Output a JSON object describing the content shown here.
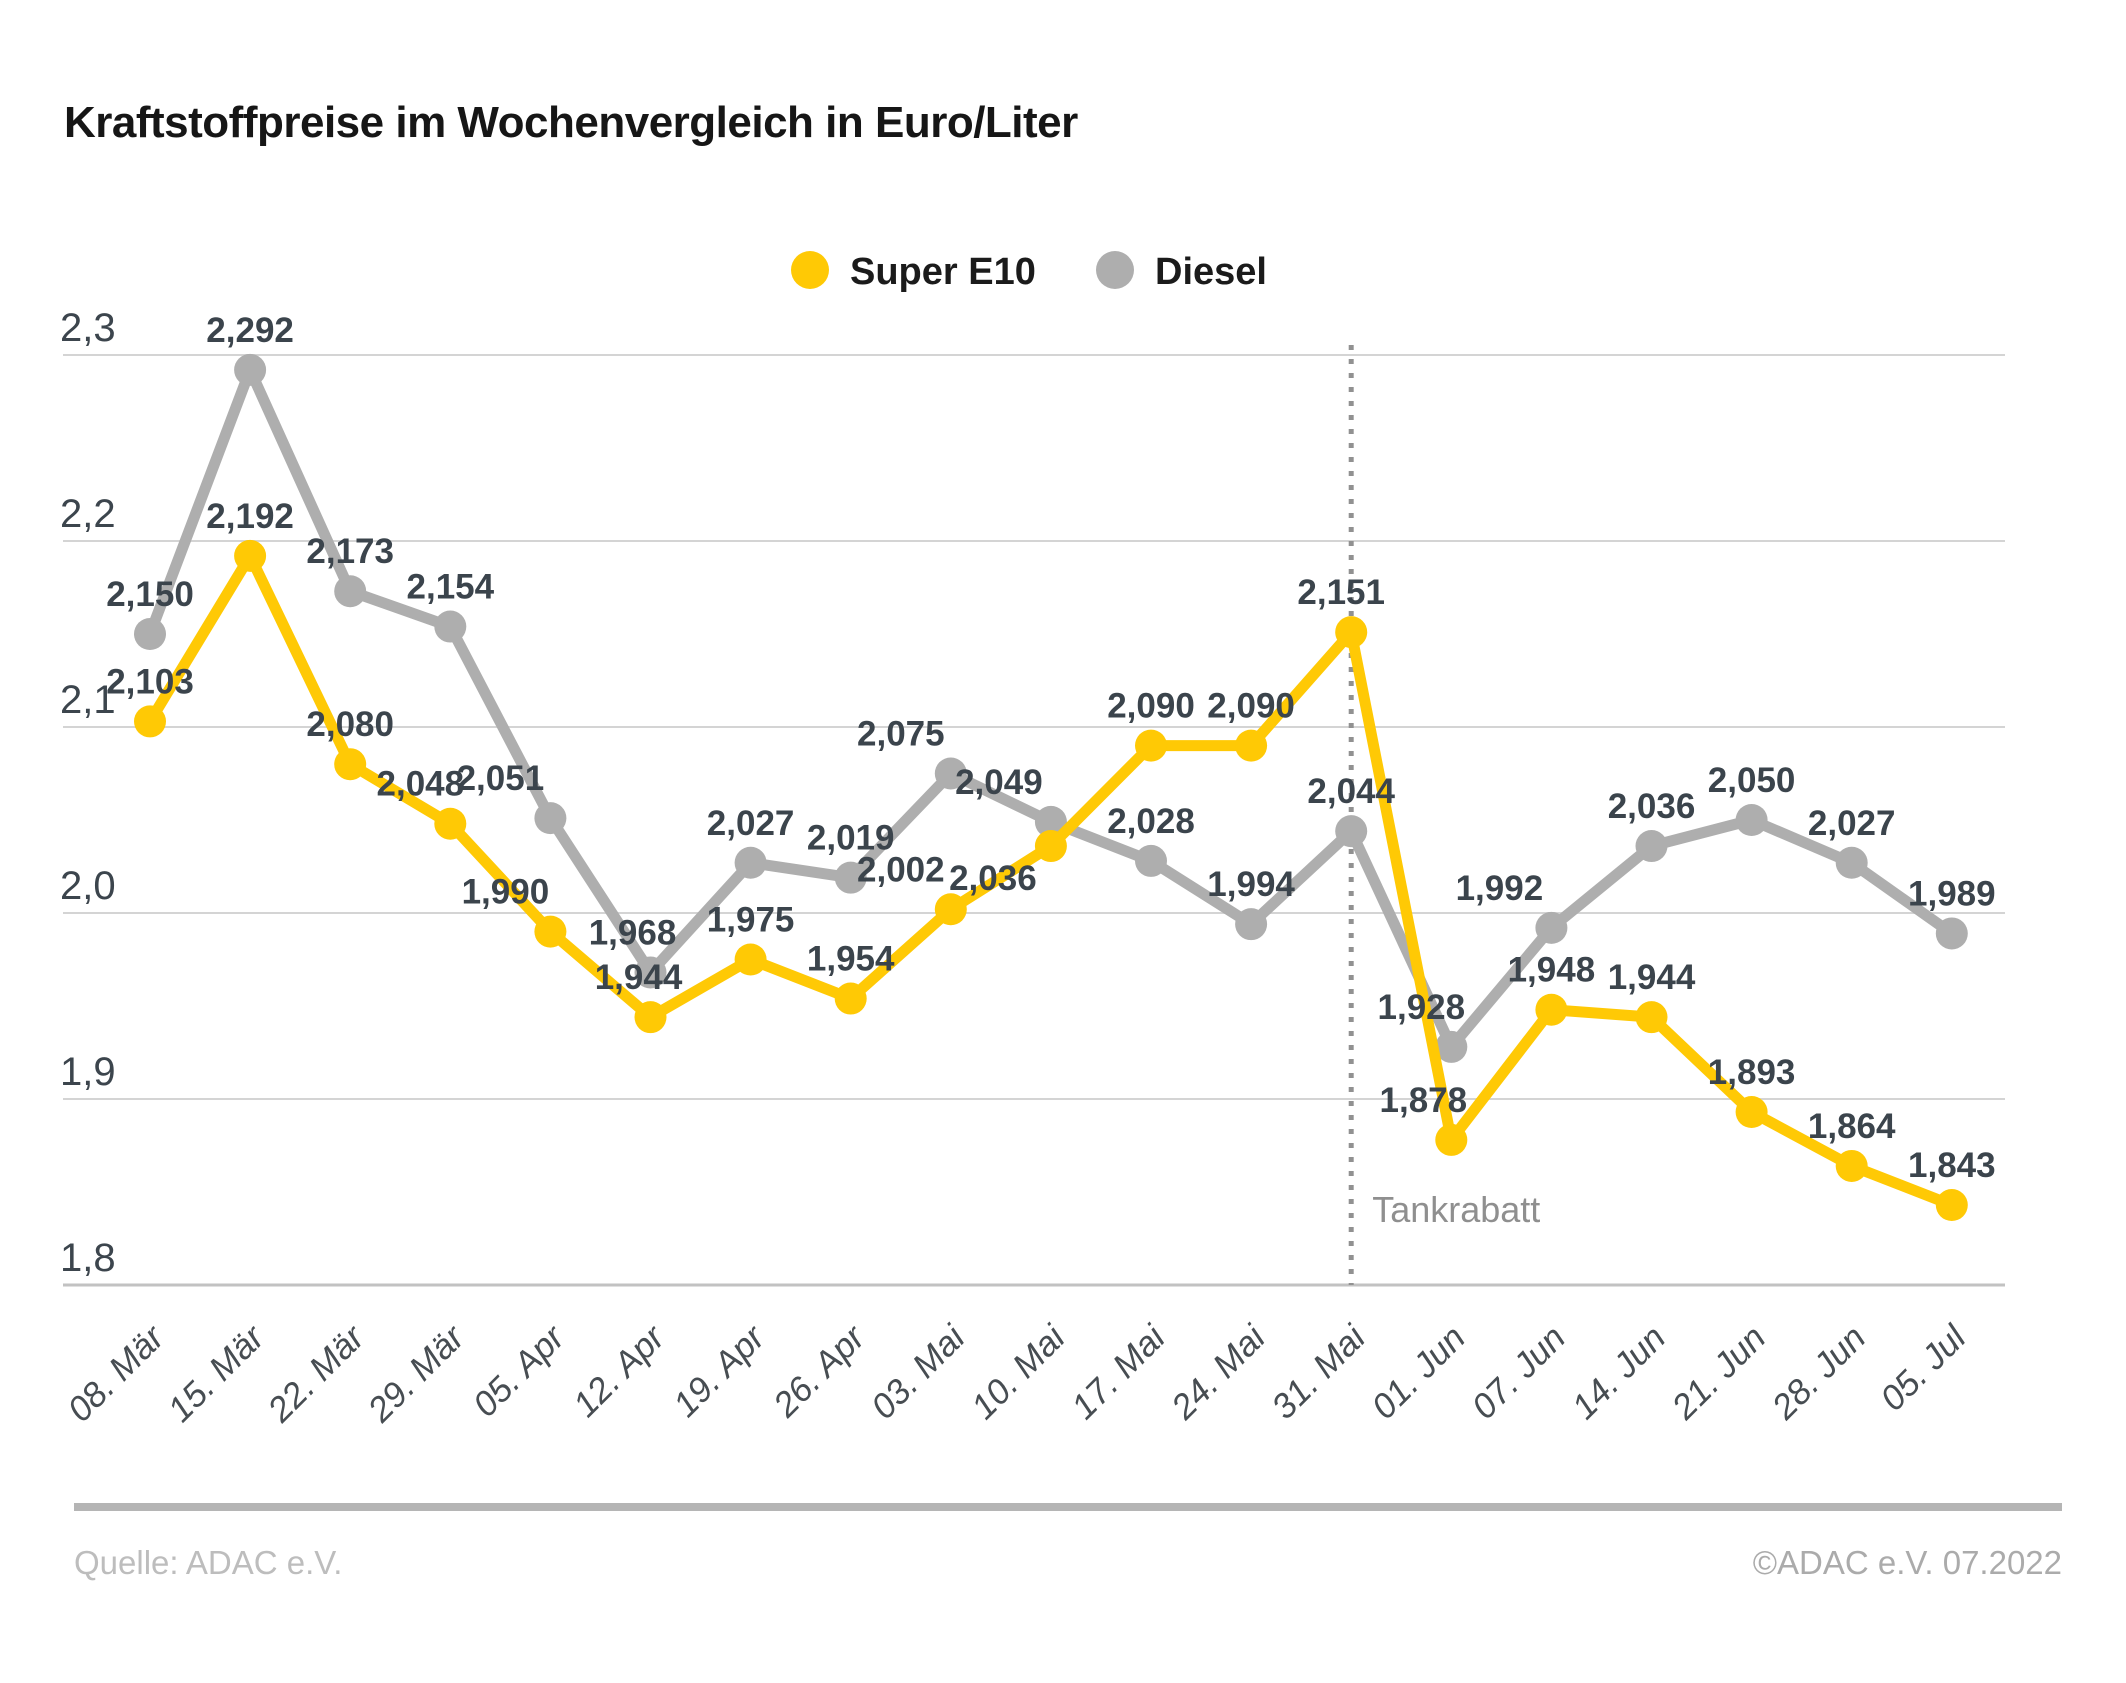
{
  "title": "Kraftstoffpreise im Wochenvergleich in Euro/Liter",
  "legend": [
    {
      "label": "Super E10",
      "color": "#FFC905"
    },
    {
      "label": "Diesel",
      "color": "#AEAEAE"
    }
  ],
  "footer": {
    "source": "Quelle: ADAC e.V.",
    "copyright": "©ADAC e.V.  07.2022"
  },
  "chart_data": {
    "type": "line",
    "title": "Kraftstoffpreise im Wochenvergleich in Euro/Liter",
    "xlabel": "",
    "ylabel": "Euro/Liter",
    "grid": true,
    "legend_position": "top",
    "ylim": [
      1.8,
      2.3
    ],
    "y_ticks": [
      "2,3",
      "2,2",
      "2,1",
      "2,0",
      "1,9",
      "1,8"
    ],
    "categories": [
      "08. Mär",
      "15. Mär",
      "22. Mär",
      "29. Mär",
      "05. Apr",
      "12. Apr",
      "19. Apr",
      "26. Apr",
      "03. Mai",
      "10. Mai",
      "17. Mai",
      "24. Mai",
      "31. Mai",
      "01. Jun",
      "07. Jun",
      "14. Jun",
      "21. Jun",
      "28. Jun",
      "05. Jul"
    ],
    "series": [
      {
        "name": "Super E10",
        "color": "#FFC905",
        "values": [
          2.103,
          2.192,
          2.08,
          2.048,
          1.99,
          1.944,
          1.975,
          1.954,
          2.002,
          2.036,
          2.09,
          2.09,
          2.151,
          1.878,
          1.948,
          1.944,
          1.893,
          1.864,
          1.843
        ]
      },
      {
        "name": "Diesel",
        "color": "#AEAEAE",
        "values": [
          2.15,
          2.292,
          2.173,
          2.154,
          2.051,
          1.968,
          2.027,
          2.019,
          2.075,
          2.049,
          2.028,
          1.994,
          2.044,
          1.928,
          1.992,
          2.036,
          2.05,
          2.027,
          1.989
        ]
      }
    ],
    "vline": {
      "category": "31. Mai",
      "label": "Tankrabatt"
    },
    "value_label_format": "de-comma-3"
  },
  "colors": {
    "grid": "#D4D4D4",
    "axis_bottom": "#C2C2C2",
    "value_label": "#3B444C",
    "y_tick_label": "#3C454D",
    "x_tick_label": "#474D52",
    "vline": "#919191",
    "annotation": "#8F8F8F"
  }
}
